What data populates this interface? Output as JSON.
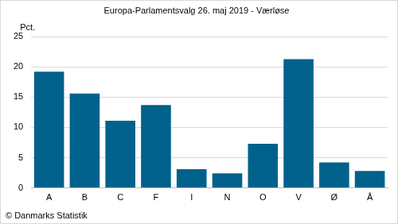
{
  "chart_data": {
    "type": "bar",
    "title": "Europa-Parlamentsvalg 26. maj 2019 - Værløse",
    "ylabel": "Pct.",
    "source": "© Danmarks Statistik",
    "categories": [
      "A",
      "B",
      "C",
      "F",
      "I",
      "N",
      "O",
      "V",
      "Ø",
      "Å"
    ],
    "values": [
      19.2,
      15.6,
      11.1,
      13.7,
      3.1,
      2.4,
      7.3,
      21.3,
      4.2,
      2.8
    ],
    "color": "#00628b",
    "ylim": [
      0,
      25
    ],
    "yticks": [
      0,
      5,
      10,
      15,
      20,
      25
    ],
    "grid": true
  }
}
